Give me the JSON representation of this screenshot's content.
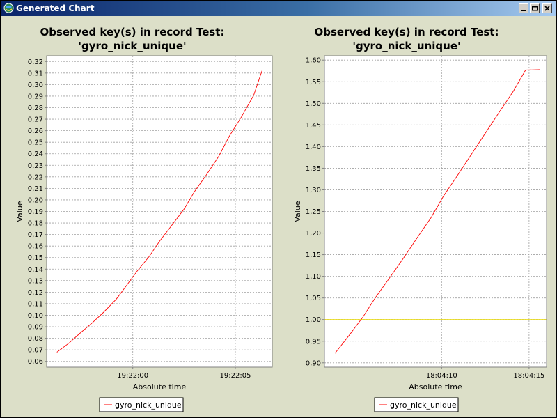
{
  "window": {
    "title": "Generated Chart",
    "minimize_icon": "minimize-icon",
    "maximize_icon": "maximize-icon",
    "close_icon": "close-icon"
  },
  "chart_data": [
    {
      "type": "line",
      "title_line1": "Observed key(s) in record Test:",
      "title_line2": "'gyro_nick_unique'",
      "xlabel": "Absolute time",
      "ylabel": "Value",
      "x_unit": "seconds",
      "xlim": [
        "19:21:55.8",
        "19:22:06.8"
      ],
      "ylim": [
        0.055,
        0.325
      ],
      "y_ticks": [
        "0,06",
        "0,07",
        "0,08",
        "0,09",
        "0,10",
        "0,11",
        "0,12",
        "0,13",
        "0,14",
        "0,15",
        "0,16",
        "0,17",
        "0,18",
        "0,19",
        "0,20",
        "0,21",
        "0,22",
        "0,23",
        "0,24",
        "0,25",
        "0,26",
        "0,27",
        "0,28",
        "0,29",
        "0,30",
        "0,31",
        "0,32"
      ],
      "y_tick_values": [
        0.06,
        0.07,
        0.08,
        0.09,
        0.1,
        0.11,
        0.12,
        0.13,
        0.14,
        0.15,
        0.16,
        0.17,
        0.18,
        0.19,
        0.2,
        0.21,
        0.22,
        0.23,
        0.24,
        0.25,
        0.26,
        0.27,
        0.28,
        0.29,
        0.3,
        0.31,
        0.32
      ],
      "x_ticks": [
        "19:22:00",
        "19:22:05"
      ],
      "x_tick_values": [
        "19:22:00",
        "19:22:05"
      ],
      "grid": true,
      "legend_position": "bottom",
      "series": [
        {
          "name": "gyro_nick_unique",
          "color": "#ff0000",
          "x": [
            "19:21:56.3",
            "19:21:56.9",
            "19:21:57.4",
            "19:21:58.0",
            "19:21:58.6",
            "19:21:59.2",
            "19:21:59.7",
            "19:22:00.2",
            "19:22:00.8",
            "19:22:01.3",
            "19:22:01.9",
            "19:22:02.5",
            "19:22:03.0",
            "19:22:03.6",
            "19:22:04.2",
            "19:22:04.7",
            "19:22:05.3",
            "19:22:05.9",
            "19:22:06.3"
          ],
          "y": [
            0.068,
            0.076,
            0.084,
            0.093,
            0.103,
            0.114,
            0.126,
            0.138,
            0.151,
            0.164,
            0.178,
            0.192,
            0.207,
            0.222,
            0.238,
            0.255,
            0.272,
            0.291,
            0.312
          ]
        }
      ],
      "reference_lines": []
    },
    {
      "type": "line",
      "title_line1": "Observed key(s) in record Test:",
      "title_line2": "'gyro_nick_unique'",
      "xlabel": "Absolute time",
      "ylabel": "Value",
      "x_unit": "seconds",
      "xlim": [
        "18:04:03.3",
        "18:04:16.0"
      ],
      "ylim": [
        0.89,
        1.61
      ],
      "y_ticks": [
        "0,90",
        "0,95",
        "1,00",
        "1,05",
        "1,10",
        "1,15",
        "1,20",
        "1,25",
        "1,30",
        "1,35",
        "1,40",
        "1,45",
        "1,50",
        "1,55",
        "1,60"
      ],
      "y_tick_values": [
        0.9,
        0.95,
        1.0,
        1.05,
        1.1,
        1.15,
        1.2,
        1.25,
        1.3,
        1.35,
        1.4,
        1.45,
        1.5,
        1.55,
        1.6
      ],
      "x_ticks": [
        "18:04:10",
        "18:04:15"
      ],
      "x_tick_values": [
        "18:04:10",
        "18:04:15"
      ],
      "grid": true,
      "legend_position": "bottom",
      "series": [
        {
          "name": "gyro_nick_unique",
          "color": "#ff0000",
          "x": [
            "18:04:03.9",
            "18:04:04.7",
            "18:04:05.5",
            "18:04:06.2",
            "18:04:07.0",
            "18:04:07.8",
            "18:04:08.6",
            "18:04:09.4",
            "18:04:10.1",
            "18:04:10.9",
            "18:04:11.7",
            "18:04:12.5",
            "18:04:13.3",
            "18:04:14.1",
            "18:04:14.8",
            "18:04:15.6"
          ],
          "y": [
            0.922,
            0.963,
            1.006,
            1.05,
            1.095,
            1.141,
            1.189,
            1.236,
            1.285,
            1.333,
            1.382,
            1.431,
            1.48,
            1.528,
            1.577,
            1.578
          ]
        }
      ],
      "reference_lines": [
        {
          "y": 1.0,
          "color": "#e8d800"
        }
      ]
    }
  ]
}
